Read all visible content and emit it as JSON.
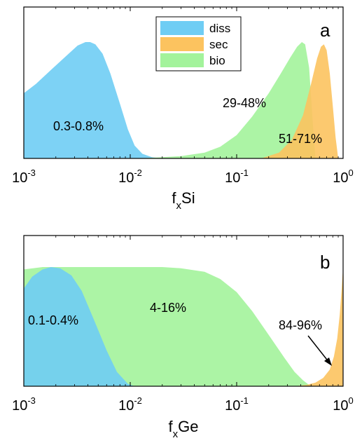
{
  "colors": {
    "diss": "#6fcdf4",
    "sec": "#fcc35f",
    "bio": "#a3f39b"
  },
  "legend": {
    "items": [
      "diss",
      "sec",
      "bio"
    ]
  },
  "chart_data": [
    {
      "type": "area",
      "panel": "a",
      "xscale": "log",
      "xlim": [
        0.001,
        1
      ],
      "xticks": [
        "10^-3",
        "10^-2",
        "10^-1",
        "10^0"
      ],
      "xlabel": {
        "main": "f",
        "sub": "x",
        "tail": "Si"
      },
      "ylabel": "",
      "grid": false,
      "legend_position": "top-center",
      "series": [
        {
          "name": "diss",
          "x": [
            0.001,
            0.0013,
            0.0018,
            0.0025,
            0.0032,
            0.0038,
            0.0042,
            0.0047,
            0.0055,
            0.0065,
            0.008,
            0.0095,
            0.011,
            0.013,
            0.016,
            0.02
          ],
          "y": [
            0.56,
            0.64,
            0.76,
            0.88,
            0.97,
            1.0,
            1.0,
            0.98,
            0.9,
            0.73,
            0.47,
            0.25,
            0.11,
            0.04,
            0.01,
            0.0
          ]
        },
        {
          "name": "bio",
          "x": [
            0.012,
            0.02,
            0.03,
            0.05,
            0.07,
            0.1,
            0.14,
            0.2,
            0.26,
            0.32,
            0.37,
            0.41,
            0.44,
            0.48,
            0.52,
            0.55
          ],
          "y": [
            0.0,
            0.01,
            0.02,
            0.05,
            0.1,
            0.2,
            0.36,
            0.56,
            0.73,
            0.87,
            0.96,
            1.0,
            0.98,
            0.78,
            0.3,
            0.0
          ]
        },
        {
          "name": "sec",
          "x": [
            0.17,
            0.25,
            0.33,
            0.42,
            0.5,
            0.57,
            0.62,
            0.66,
            0.7,
            0.75,
            0.8,
            0.85,
            0.9
          ],
          "y": [
            0.0,
            0.05,
            0.16,
            0.37,
            0.64,
            0.86,
            0.96,
            0.98,
            0.93,
            0.73,
            0.45,
            0.18,
            0.0
          ]
        }
      ],
      "annotations": [
        "0.3-0.8%",
        "29-48%",
        "51-71%"
      ]
    },
    {
      "type": "area",
      "panel": "b",
      "xscale": "log",
      "xlim": [
        0.001,
        1
      ],
      "xticks": [
        "10^-3",
        "10^-2",
        "10^-1",
        "10^0"
      ],
      "xlabel": {
        "main": "f",
        "sub": "x",
        "tail": "Ge"
      },
      "ylabel": "",
      "grid": false,
      "series": [
        {
          "name": "bio",
          "x": [
            0.001,
            0.0015,
            0.003,
            0.005,
            0.01,
            0.02,
            0.03,
            0.05,
            0.07,
            0.1,
            0.14,
            0.2,
            0.28,
            0.35,
            0.42,
            0.48,
            0.55
          ],
          "y": [
            0.98,
            1.0,
            1.0,
            1.0,
            1.0,
            1.0,
            0.99,
            0.96,
            0.9,
            0.79,
            0.63,
            0.43,
            0.24,
            0.12,
            0.05,
            0.01,
            0.0
          ]
        },
        {
          "name": "diss",
          "x": [
            0.001,
            0.0012,
            0.0015,
            0.0018,
            0.0022,
            0.0028,
            0.0035,
            0.0045,
            0.006,
            0.0075,
            0.0095,
            0.011
          ],
          "y": [
            0.82,
            0.92,
            0.98,
            1.0,
            0.99,
            0.93,
            0.8,
            0.57,
            0.3,
            0.12,
            0.02,
            0.0
          ]
        },
        {
          "name": "sec",
          "x": [
            0.35,
            0.45,
            0.55,
            0.65,
            0.75,
            0.82,
            0.88,
            0.93,
            0.97,
            1.0
          ],
          "y": [
            0.0,
            0.01,
            0.03,
            0.07,
            0.14,
            0.25,
            0.4,
            0.6,
            0.82,
            1.0
          ]
        }
      ],
      "annotations": [
        "0.1-0.4%",
        "4-16%",
        "84-96%"
      ]
    }
  ]
}
